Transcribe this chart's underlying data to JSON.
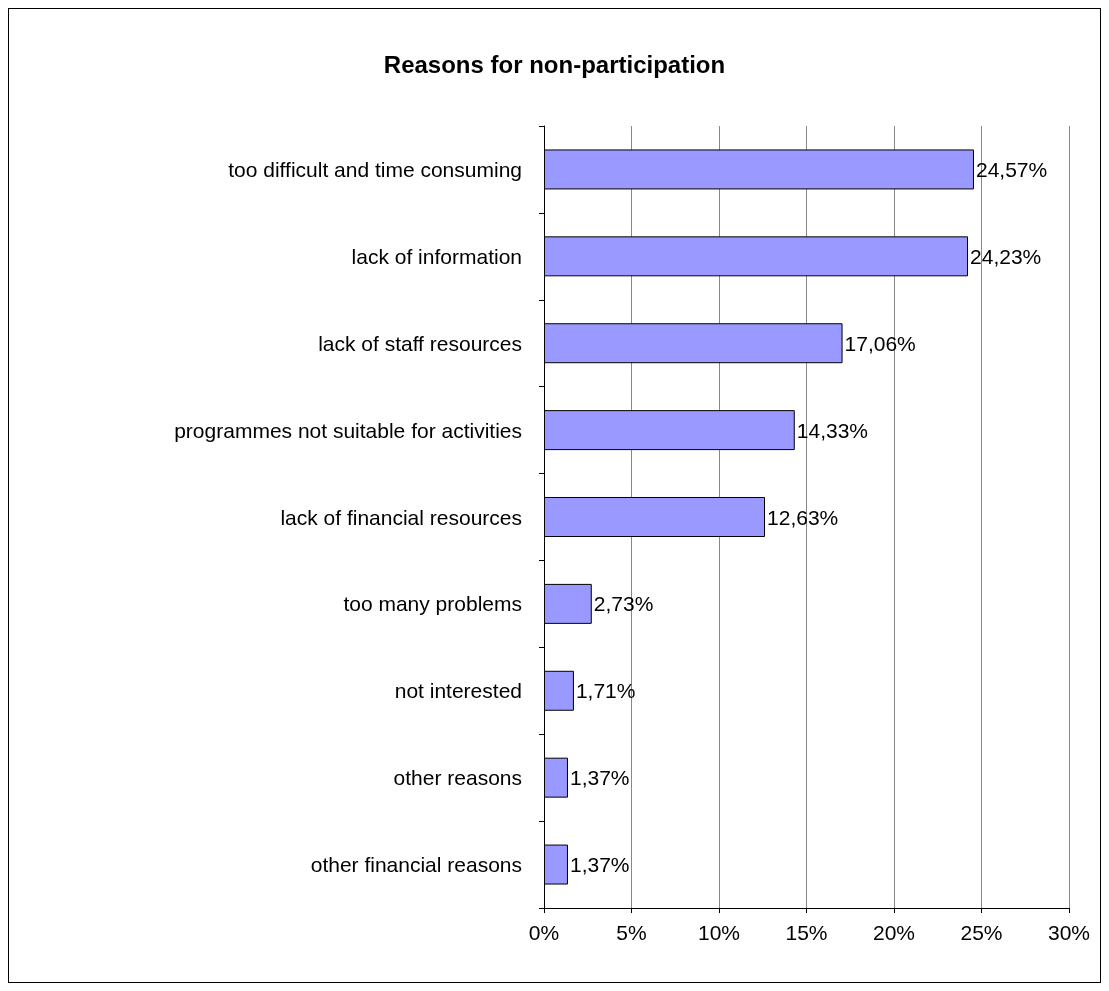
{
  "chart_data": {
    "type": "bar",
    "orientation": "horizontal",
    "title": "Reasons for non-participation",
    "categories": [
      "too difficult and time consuming",
      "lack of information",
      "lack of staff resources",
      "programmes not suitable for activities",
      "lack of financial resources",
      "too many problems",
      "not interested",
      "other reasons",
      "other financial reasons"
    ],
    "values": [
      24.57,
      24.23,
      17.06,
      14.33,
      12.63,
      2.73,
      1.71,
      1.37,
      1.37
    ],
    "value_labels": [
      "24,57%",
      "24,23%",
      "17,06%",
      "14,33%",
      "12,63%",
      "2,73%",
      "1,71%",
      "1,37%",
      "1,37%"
    ],
    "color": "#9999ff",
    "xlim": [
      0,
      30
    ],
    "xticks": [
      {
        "value": 0,
        "label": "0%"
      },
      {
        "value": 5,
        "label": "5%"
      },
      {
        "value": 10,
        "label": "10%"
      },
      {
        "value": 15,
        "label": "15%"
      },
      {
        "value": 20,
        "label": "20%"
      },
      {
        "value": 25,
        "label": "25%"
      },
      {
        "value": 30,
        "label": "30%"
      }
    ],
    "grid": "x"
  }
}
